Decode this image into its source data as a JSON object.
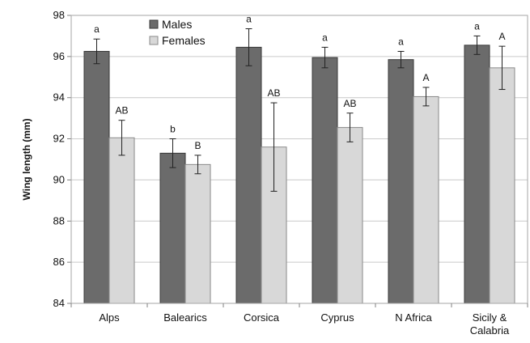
{
  "chart_data": {
    "type": "bar",
    "title": "",
    "xlabel": "",
    "ylabel": "Wing length (mm)",
    "ylim": [
      84,
      98
    ],
    "yticks": [
      "84",
      "86",
      "88",
      "90",
      "92",
      "94",
      "96",
      "98"
    ],
    "grid": true,
    "legend_position": "top-center",
    "categories": [
      "Alps",
      "Balearics",
      "Corsica",
      "Cyprus",
      "N Africa",
      [
        "Sicily &",
        "Calabria"
      ]
    ],
    "series": [
      {
        "name": "Males",
        "color": "#6b6b6b",
        "values": [
          96.25,
          91.3,
          96.45,
          95.95,
          95.85,
          96.55
        ],
        "errors": [
          0.6,
          0.7,
          0.9,
          0.5,
          0.4,
          0.45
        ],
        "significance": [
          "a",
          "b",
          "a",
          "a",
          "a",
          "a"
        ]
      },
      {
        "name": "Females",
        "color": "#d8d8d8",
        "values": [
          92.05,
          90.75,
          91.6,
          92.55,
          94.05,
          95.45
        ],
        "errors": [
          0.85,
          0.45,
          2.15,
          0.7,
          0.45,
          1.05
        ],
        "significance": [
          "AB",
          "B",
          "AB",
          "AB",
          "A",
          "A"
        ]
      }
    ]
  }
}
